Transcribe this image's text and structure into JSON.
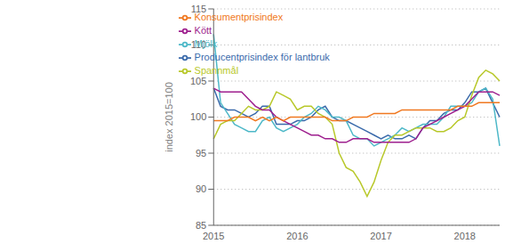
{
  "chart_data": {
    "type": "line",
    "ylabel": "index 2015=100",
    "categories": [
      "2015",
      null,
      null,
      null,
      null,
      null,
      null,
      null,
      null,
      null,
      null,
      null,
      "2016",
      null,
      null,
      null,
      null,
      null,
      null,
      null,
      null,
      null,
      null,
      null,
      "2017",
      null,
      null,
      null,
      null,
      null,
      null,
      null,
      null,
      null,
      null,
      null,
      "2018",
      null,
      null,
      null,
      null,
      null
    ],
    "series": [
      {
        "name": "Producentprisindex för lantbruk",
        "color": "#3a6aab",
        "values": [
          104.0,
          101.5,
          101.0,
          101.0,
          100.5,
          100.0,
          100.5,
          101.5,
          101.5,
          99.0,
          99.0,
          99.0,
          99.5,
          99.5,
          100.0,
          101.0,
          101.5,
          100.0,
          99.5,
          99.5,
          99.0,
          98.5,
          98.0,
          97.5,
          97.0,
          97.5,
          97.0,
          97.0,
          97.5,
          97.0,
          98.5,
          99.5,
          99.5,
          100.5,
          101.0,
          101.0,
          102.0,
          103.5,
          103.5,
          104.0,
          102.0,
          100.0
        ]
      },
      {
        "name": "Mjölk",
        "color": "#4db8c8",
        "values": [
          111.5,
          102.0,
          100.5,
          99.0,
          98.5,
          98.0,
          98.0,
          99.5,
          100.0,
          98.5,
          98.0,
          98.5,
          99.0,
          100.0,
          100.5,
          101.5,
          101.0,
          100.0,
          100.0,
          99.5,
          97.5,
          97.0,
          97.0,
          96.0,
          96.5,
          97.0,
          97.5,
          98.5,
          98.0,
          98.5,
          99.0,
          99.0,
          99.0,
          100.0,
          101.5,
          101.5,
          101.5,
          102.0,
          103.5,
          104.0,
          102.5,
          96.0
        ]
      },
      {
        "name": "Spannmål",
        "color": "#b8c82a",
        "values": [
          97.0,
          99.0,
          99.5,
          99.5,
          100.5,
          101.5,
          101.0,
          101.0,
          101.5,
          103.5,
          103.0,
          102.5,
          101.0,
          101.5,
          101.5,
          100.5,
          100.0,
          99.0,
          95.0,
          93.0,
          92.5,
          91.0,
          89.0,
          91.0,
          94.0,
          96.5,
          97.5,
          97.5,
          98.0,
          98.5,
          98.5,
          98.5,
          98.0,
          98.0,
          98.5,
          99.5,
          100.0,
          103.0,
          105.5,
          106.5,
          106.0,
          105.0
        ]
      },
      {
        "name": "Kött",
        "color": "#9e1f8e",
        "values": [
          104.0,
          103.5,
          103.5,
          103.5,
          103.5,
          102.5,
          101.5,
          101.0,
          101.0,
          100.0,
          99.5,
          99.0,
          98.5,
          98.0,
          97.5,
          97.5,
          97.0,
          97.0,
          96.5,
          96.5,
          97.0,
          97.0,
          97.0,
          96.5,
          96.5,
          96.5,
          96.5,
          96.5,
          96.5,
          97.0,
          98.5,
          99.0,
          99.5,
          100.0,
          100.5,
          101.0,
          101.5,
          102.5,
          103.5,
          103.5,
          103.5,
          103.0
        ]
      },
      {
        "name": "Konsumentprisindex",
        "color": "#f07820",
        "values": [
          99.5,
          99.5,
          99.5,
          100.0,
          100.0,
          100.0,
          99.5,
          100.0,
          99.5,
          100.0,
          99.5,
          100.0,
          100.0,
          100.0,
          100.0,
          100.0,
          100.0,
          99.5,
          99.5,
          99.5,
          100.0,
          100.0,
          100.0,
          100.5,
          100.5,
          100.5,
          100.5,
          101.0,
          101.0,
          101.0,
          101.0,
          101.0,
          101.0,
          101.0,
          101.0,
          101.5,
          101.5,
          101.5,
          102.0,
          102.0,
          102.0,
          102.0
        ]
      }
    ],
    "ylim": [
      85,
      115
    ],
    "yticks": [
      85,
      90,
      95,
      100,
      105,
      110,
      115
    ],
    "grid": true,
    "legend": "upper center"
  }
}
